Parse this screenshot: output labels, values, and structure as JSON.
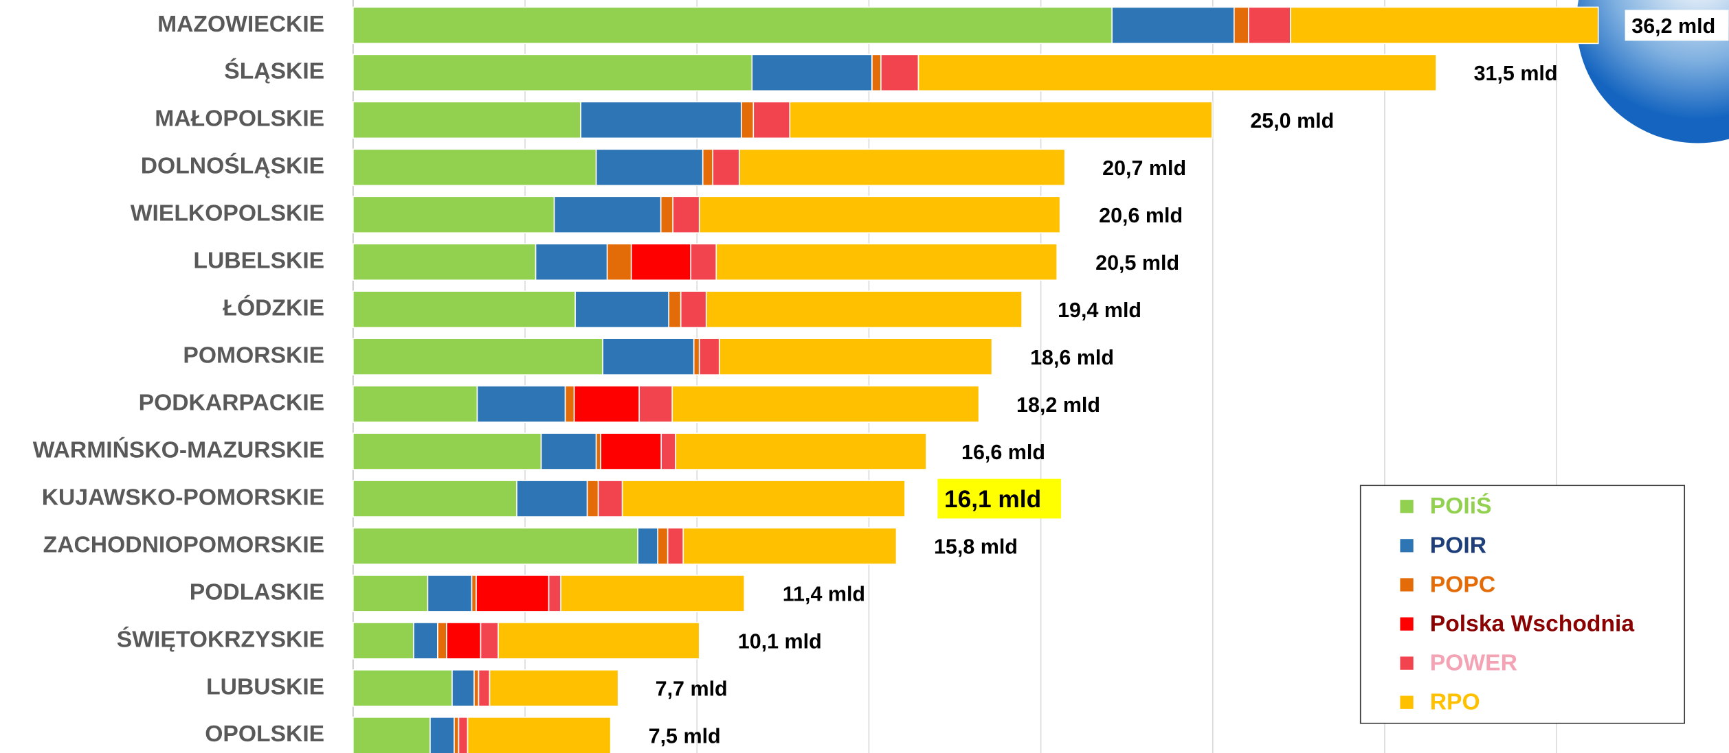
{
  "chart_data": {
    "type": "stacked-bar-horizontal",
    "categories": [
      "MAZOWIECKIE",
      "ŚLĄSKIE",
      "MAŁOPOLSKIE",
      "DOLNOŚLĄSKIE",
      "WIELKOPOLSKIE",
      "LUBELSKIE",
      "ŁÓDZKIE",
      "POMORSKIE",
      "PODKARPACKIE",
      "WARMIŃSKO-MAZURSKIE",
      "KUJAWSKO-POMORSKIE",
      "ZACHODNIOPOMORSKIE",
      "PODLASKIE",
      "ŚWIĘTOKRZYSKIE",
      "LUBUSKIE",
      "OPOLSKIE"
    ],
    "series": [
      {
        "name": "POIiŚ",
        "color": "#92d050",
        "label_color": "#92d050",
        "values": [
          22.07,
          11.6,
          6.62,
          7.07,
          5.85,
          5.31,
          6.46,
          7.26,
          3.61,
          5.47,
          4.76,
          8.28,
          2.17,
          1.76,
          2.88,
          2.24
        ]
      },
      {
        "name": "POIR",
        "color": "#2e75b6",
        "label_color": "#1f3f7a",
        "values": [
          3.55,
          3.49,
          4.67,
          3.1,
          3.1,
          2.08,
          2.72,
          2.65,
          2.56,
          1.6,
          2.05,
          0.58,
          1.28,
          0.7,
          0.64,
          0.7
        ]
      },
      {
        "name": "POPC",
        "color": "#e36c09",
        "label_color": "#e36c09",
        "values": [
          0.42,
          0.26,
          0.35,
          0.29,
          0.35,
          0.7,
          0.35,
          0.16,
          0.26,
          0.13,
          0.32,
          0.29,
          0.13,
          0.26,
          0.13,
          0.13
        ]
      },
      {
        "name": "Polska Wschodnia",
        "color": "#ff0000",
        "label_color": "#8b0000",
        "values": [
          0,
          0,
          0,
          0,
          0,
          1.73,
          0,
          0,
          1.89,
          1.76,
          0,
          0,
          2.11,
          0.99,
          0,
          0
        ]
      },
      {
        "name": "POWER",
        "color": "#f2444f",
        "label_color": "#f4a3b4",
        "values": [
          1.22,
          1.09,
          1.06,
          0.77,
          0.77,
          0.74,
          0.74,
          0.58,
          0.96,
          0.42,
          0.7,
          0.45,
          0.35,
          0.51,
          0.32,
          0.26
        ]
      },
      {
        "name": "RPO",
        "color": "#ffc000",
        "label_color": "#ffc000",
        "values": [
          8.95,
          15.06,
          12.28,
          9.47,
          10.49,
          9.91,
          9.18,
          7.93,
          8.92,
          7.29,
          8.22,
          6.2,
          5.34,
          5.85,
          3.74,
          4.16
        ]
      }
    ],
    "totals": [
      36.2,
      31.5,
      25.0,
      20.7,
      20.6,
      20.5,
      19.4,
      18.6,
      18.2,
      16.6,
      16.1,
      15.8,
      11.4,
      10.1,
      7.7,
      7.5
    ],
    "total_labels": [
      "36,2 mld",
      "31,5 mld",
      "25,0 mld",
      "20,7 mld",
      "20,6 mld",
      "20,5 mld",
      "19,4 mld",
      "18,6 mld",
      "18,2 mld",
      "16,6 mld",
      "16,1 mld",
      "15,8 mld",
      "11,4 mld",
      "10,1 mld",
      "7,7 mld",
      "7,5 mld"
    ],
    "highlight": {
      "index": 10,
      "color": "#ffff00"
    },
    "xlim": [
      0,
      40
    ],
    "xticks": [
      0,
      5,
      10,
      15,
      20,
      25,
      30,
      35
    ],
    "grid": true,
    "legend": "lower-right"
  }
}
